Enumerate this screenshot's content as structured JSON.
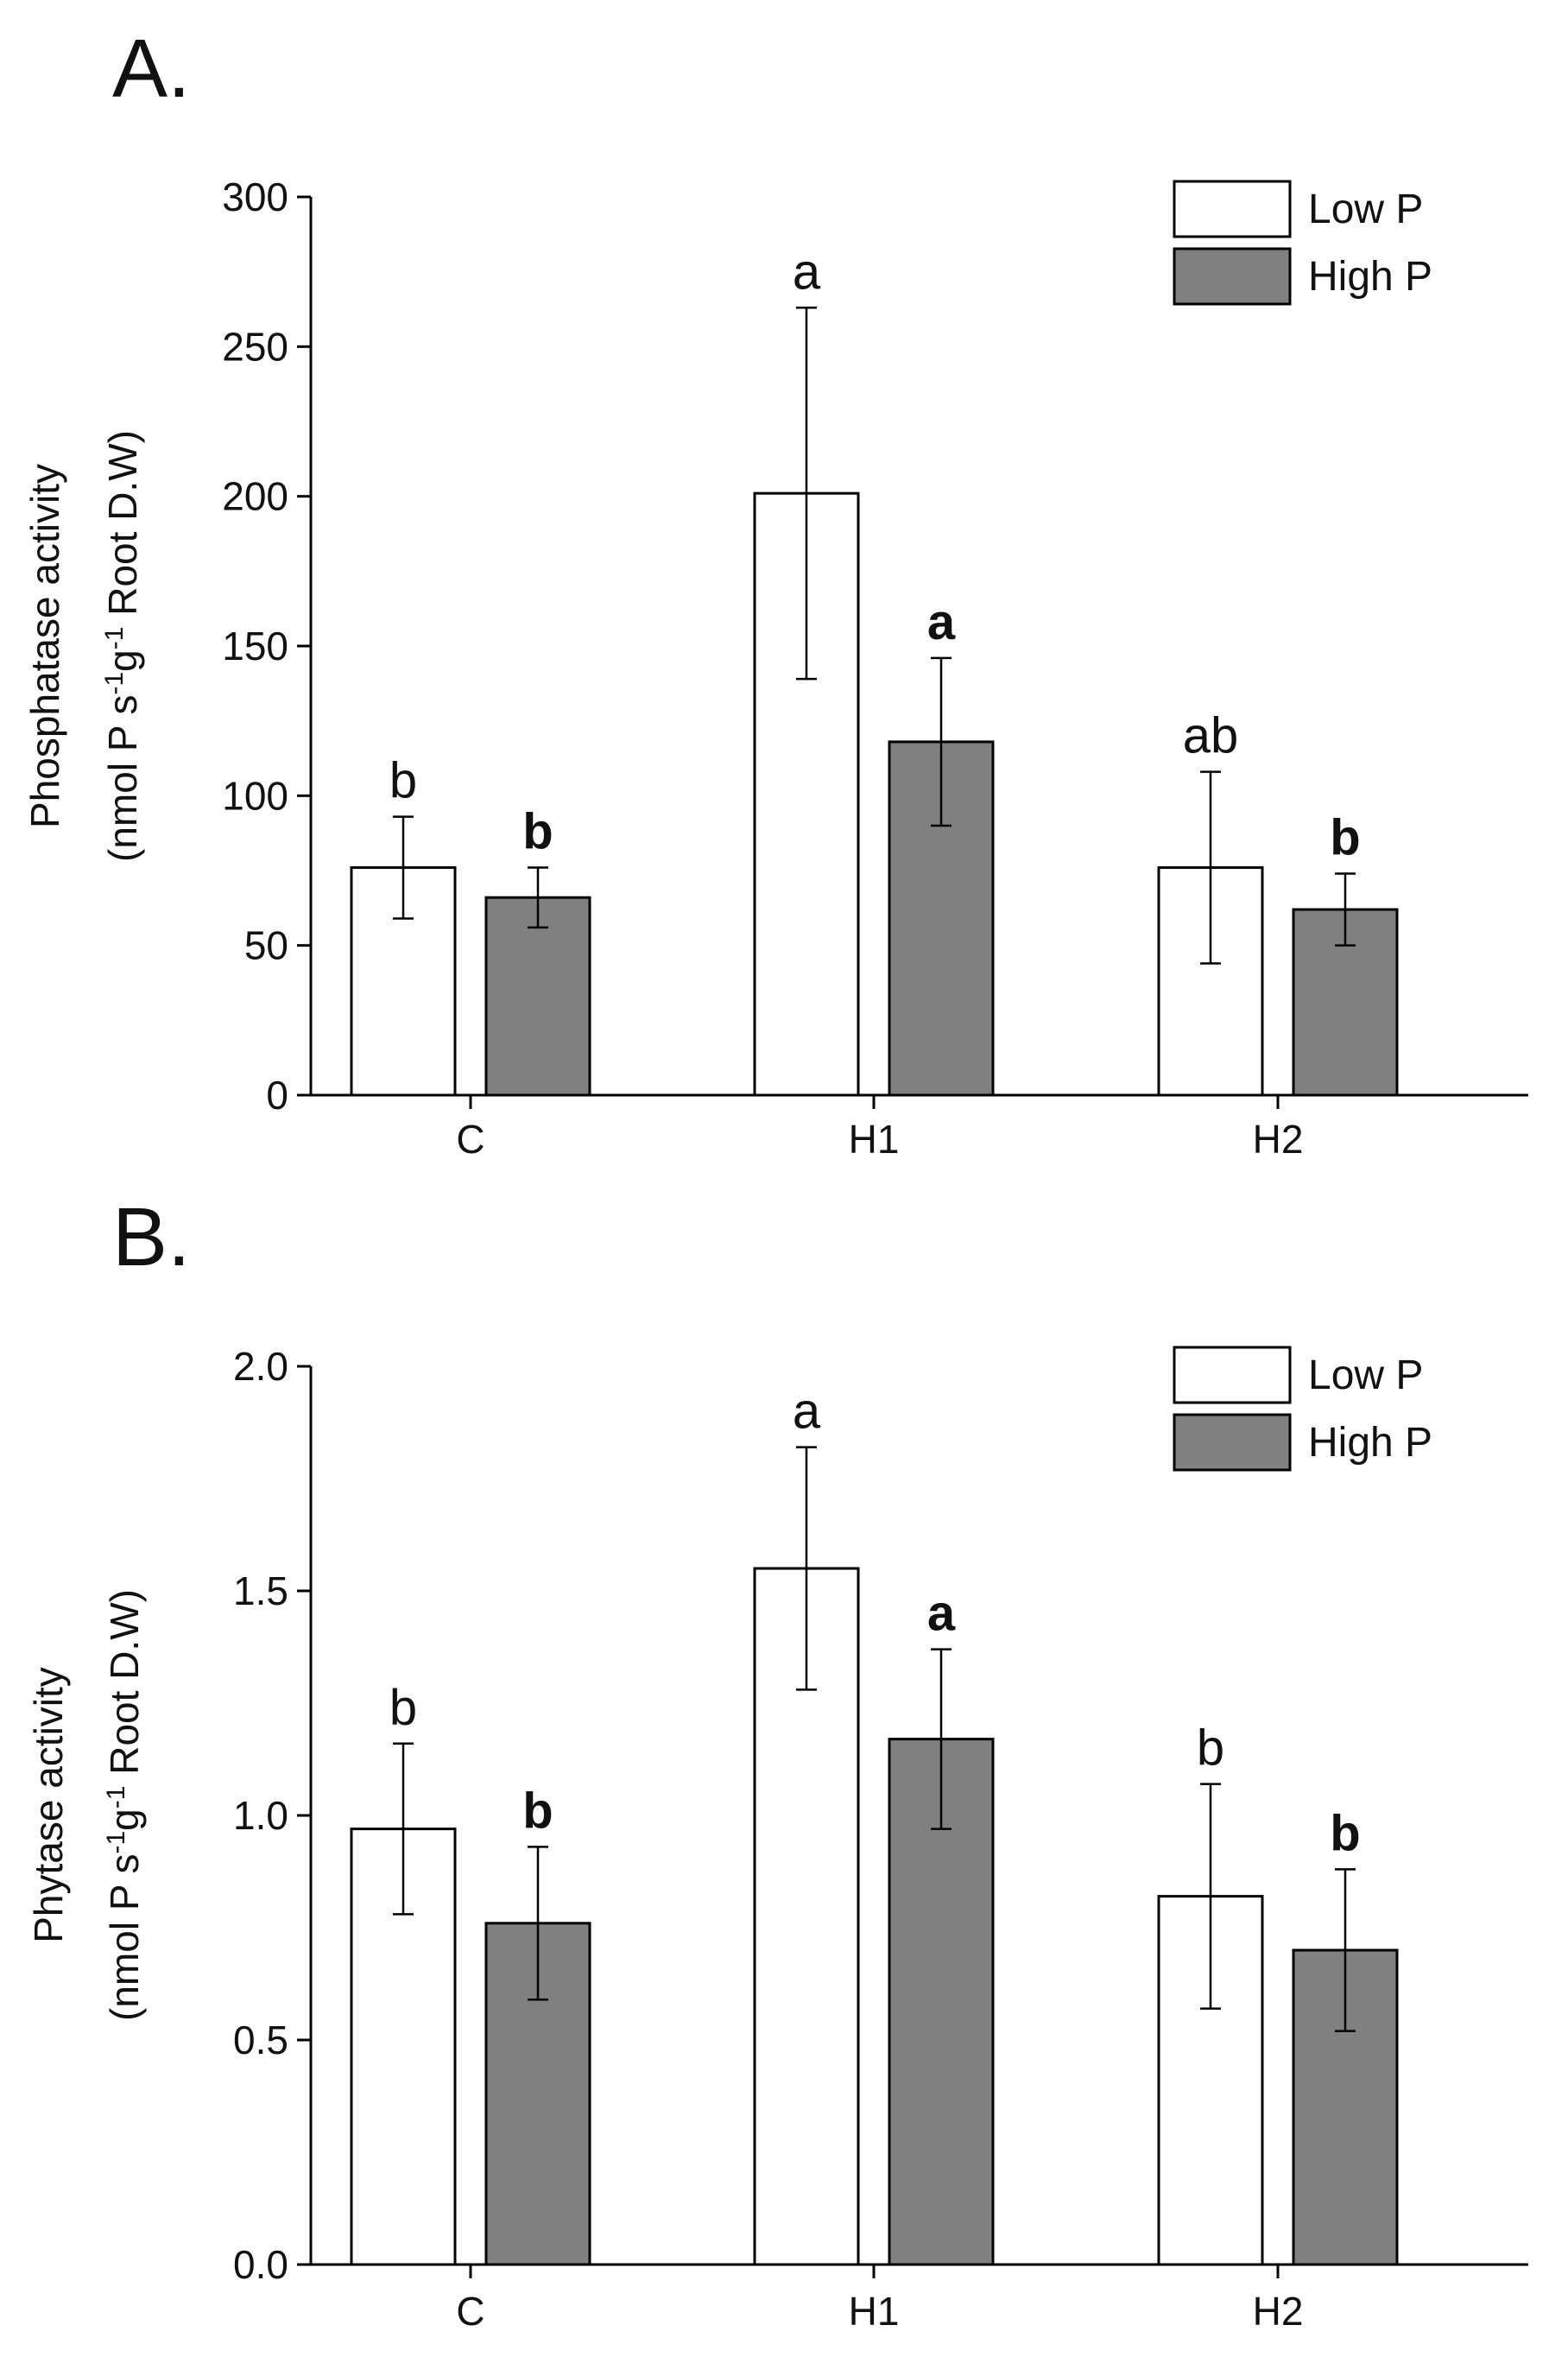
{
  "figure": {
    "colors": {
      "low": "#ffffff",
      "high": "#808080",
      "stroke": "#000000"
    }
  },
  "chart_data": [
    {
      "type": "bar",
      "panel_label": "A.",
      "categories": [
        "C",
        "H1",
        "H2"
      ],
      "series": [
        {
          "name": "Low P",
          "values": [
            76,
            201,
            76
          ],
          "errors": [
            17,
            62,
            32
          ],
          "sig": [
            "b",
            "a",
            "ab"
          ],
          "sig_bold": false
        },
        {
          "name": "High P",
          "values": [
            66,
            118,
            62
          ],
          "errors": [
            10,
            28,
            12
          ],
          "sig": [
            "b",
            "a",
            "b"
          ],
          "sig_bold": true
        }
      ],
      "ylabel_line1": "Phosphatase activity",
      "ylabel_line2": {
        "pre": "(nmol P s",
        "sup1": "-1",
        "mid": "g",
        "sup2": "-1",
        "post": " Root D.W)"
      },
      "ylim": [
        0,
        300
      ],
      "yticks": [
        0,
        50,
        100,
        150,
        200,
        250,
        300
      ],
      "ytick_labels": [
        "0",
        "50",
        "100",
        "150",
        "200",
        "250",
        "300"
      ],
      "legend": [
        "Low P",
        "High P"
      ],
      "legend_position": "top-right"
    },
    {
      "type": "bar",
      "panel_label": "B.",
      "categories": [
        "C",
        "H1",
        "H2"
      ],
      "series": [
        {
          "name": "Low P",
          "values": [
            0.97,
            1.55,
            0.82
          ],
          "errors": [
            0.19,
            0.27,
            0.25
          ],
          "sig": [
            "b",
            "a",
            "b"
          ],
          "sig_bold": false
        },
        {
          "name": "High P",
          "values": [
            0.76,
            1.17,
            0.7
          ],
          "errors": [
            0.17,
            0.2,
            0.18
          ],
          "sig": [
            "b",
            "a",
            "b"
          ],
          "sig_bold": true
        }
      ],
      "ylabel_line1": "Phytase activity",
      "ylabel_line2": {
        "pre": "(nmol P s",
        "sup1": "-1",
        "mid": "g",
        "sup2": "-1",
        "post": " Root D.W)"
      },
      "ylim": [
        0,
        2.0
      ],
      "yticks": [
        0,
        0.5,
        1.0,
        1.5,
        2.0
      ],
      "ytick_labels": [
        "0.0",
        "0.5",
        "1.0",
        "1.5",
        "2.0"
      ],
      "legend": [
        "Low P",
        "High P"
      ],
      "legend_position": "top-right"
    }
  ]
}
